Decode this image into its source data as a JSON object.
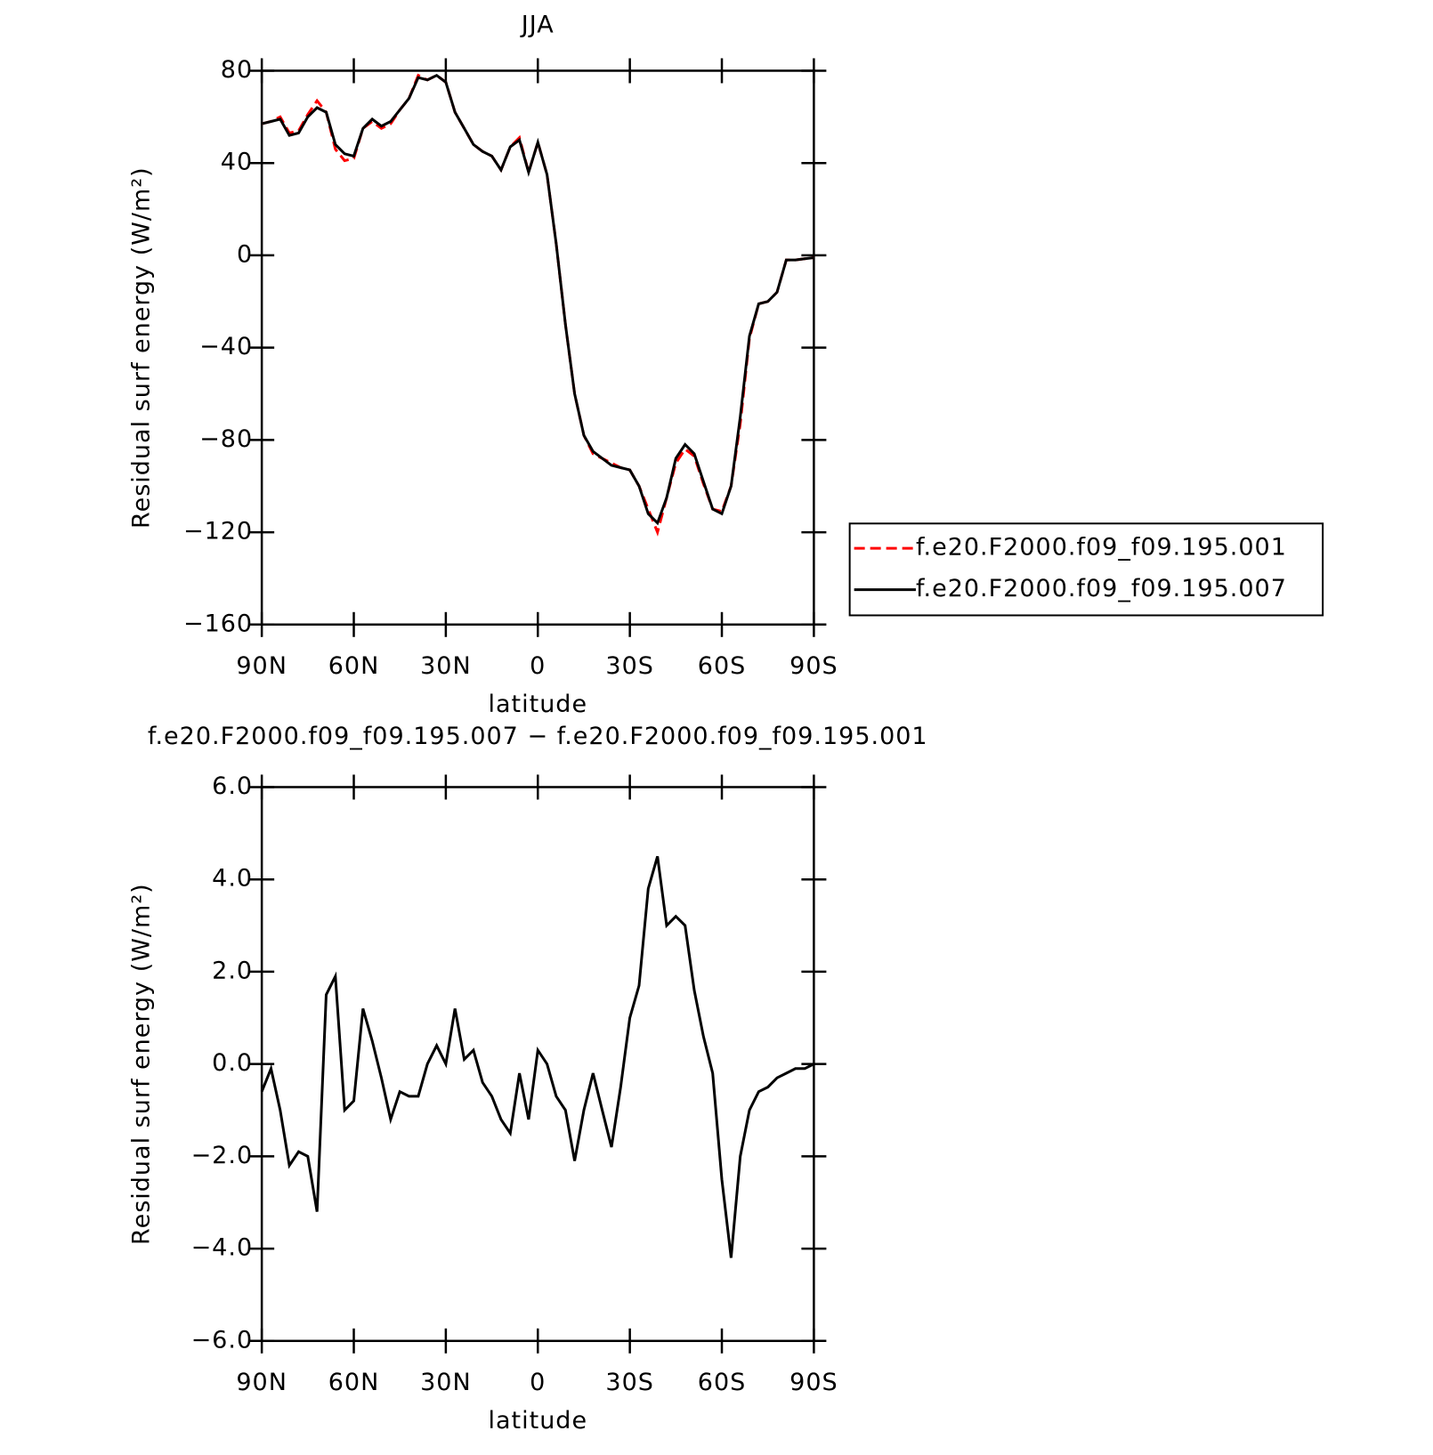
{
  "chart_data": [
    {
      "type": "line",
      "title": "JJA",
      "xlabel": "latitude",
      "ylabel": "Residual surf energy (W/m²)",
      "x": [
        90,
        87,
        84,
        81,
        78,
        75,
        72,
        69,
        66,
        63,
        60,
        57,
        54,
        51,
        48,
        45,
        42,
        39,
        36,
        33,
        30,
        27,
        24,
        21,
        18,
        15,
        12,
        9,
        6,
        3,
        0,
        -3,
        -6,
        -9,
        -12,
        -15,
        -18,
        -21,
        -24,
        -27,
        -30,
        -33,
        -36,
        -39,
        -42,
        -45,
        -48,
        -51,
        -54,
        -57,
        -60,
        -63,
        -66,
        -69,
        -72,
        -75,
        -78,
        -81,
        -84,
        -87,
        -90
      ],
      "xlim": [
        90,
        -90
      ],
      "xticks": [
        {
          "value": 90,
          "label": "90N"
        },
        {
          "value": 60,
          "label": "60N"
        },
        {
          "value": 30,
          "label": "30N"
        },
        0,
        {
          "value": -30,
          "label": "30S"
        },
        {
          "value": -60,
          "label": "60S"
        },
        {
          "value": -90,
          "label": "90S"
        }
      ],
      "ylim": [
        -160,
        80
      ],
      "yticks": [
        {
          "value": -160,
          "label": "−160"
        },
        {
          "value": -120,
          "label": "−120"
        },
        {
          "value": -80,
          "label": "−80"
        },
        {
          "value": -40,
          "label": "−40"
        },
        0,
        40,
        80
      ],
      "legend": "right",
      "series": [
        {
          "name": "f.e20.F2000.f09_f09.195.001",
          "color": "#ff0000",
          "dash": "dashed",
          "values": [
            57,
            58,
            60,
            53,
            54,
            61,
            67,
            62,
            46,
            41,
            42,
            55,
            58,
            55,
            57,
            63,
            68,
            78,
            76,
            78,
            75,
            62,
            55,
            48,
            45,
            43,
            37,
            47,
            51,
            36,
            49,
            35,
            5,
            -30,
            -60,
            -78,
            -86,
            -88,
            -90,
            -92,
            -93,
            -100,
            -110,
            -120,
            -105,
            -90,
            -84,
            -87,
            -99,
            -110,
            -111,
            -100,
            -73,
            -36,
            -21,
            -20,
            -16,
            -2,
            -2,
            -1.5,
            -1
          ]
        },
        {
          "name": "f.e20.F2000.f09_f09.195.007",
          "color": "#000000",
          "dash": "solid",
          "values": [
            57,
            58,
            59,
            52,
            53,
            60,
            64,
            62,
            48,
            44,
            43,
            55,
            59,
            56,
            58,
            63,
            68,
            77,
            76,
            78,
            75,
            62,
            55,
            48,
            45,
            43,
            37,
            47,
            50,
            36,
            49,
            35,
            5,
            -30,
            -60,
            -78,
            -85,
            -88,
            -91,
            -92,
            -93,
            -100,
            -112,
            -116,
            -105,
            -88,
            -82,
            -86,
            -98,
            -110,
            -112,
            -100,
            -70,
            -35,
            -21,
            -20,
            -16,
            -2,
            -2,
            -1.5,
            -1
          ]
        }
      ]
    },
    {
      "type": "line",
      "title": "f.e20.F2000.f09_f09.195.007 − f.e20.F2000.f09_f09.195.001",
      "xlabel": "latitude",
      "ylabel": "Residual surf energy (W/m²)",
      "x": [
        90,
        87,
        84,
        81,
        78,
        75,
        72,
        69,
        66,
        63,
        60,
        57,
        54,
        51,
        48,
        45,
        42,
        39,
        36,
        33,
        30,
        27,
        24,
        21,
        18,
        15,
        12,
        9,
        6,
        3,
        0,
        -3,
        -6,
        -9,
        -12,
        -15,
        -18,
        -21,
        -24,
        -27,
        -30,
        -33,
        -36,
        -39,
        -42,
        -45,
        -48,
        -51,
        -54,
        -57,
        -60,
        -63,
        -66,
        -69,
        -72,
        -75,
        -78,
        -81,
        -84,
        -87,
        -90
      ],
      "xlim": [
        90,
        -90
      ],
      "xticks": [
        {
          "value": 90,
          "label": "90N"
        },
        {
          "value": 60,
          "label": "60N"
        },
        {
          "value": 30,
          "label": "30N"
        },
        0,
        {
          "value": -30,
          "label": "30S"
        },
        {
          "value": -60,
          "label": "60S"
        },
        {
          "value": -90,
          "label": "90S"
        }
      ],
      "ylim": [
        -6,
        6
      ],
      "yticks": [
        {
          "value": -6,
          "label": "−6.0"
        },
        {
          "value": -4,
          "label": "−4.0"
        },
        {
          "value": -2,
          "label": "−2.0"
        },
        {
          "value": 0,
          "label": "0.0"
        },
        {
          "value": 2,
          "label": "2.0"
        },
        {
          "value": 4,
          "label": "4.0"
        },
        {
          "value": 6,
          "label": "6.0"
        }
      ],
      "series": [
        {
          "color": "#000000",
          "dash": "solid",
          "values": [
            -0.6,
            -0.1,
            -1.0,
            -2.2,
            -1.9,
            -2.0,
            -3.2,
            1.5,
            1.9,
            -1.0,
            -0.8,
            1.2,
            0.5,
            -0.3,
            -1.2,
            -0.6,
            -0.7,
            -0.7,
            0.0,
            0.4,
            0.0,
            1.2,
            0.1,
            0.3,
            -0.4,
            -0.7,
            -1.2,
            -1.5,
            -0.2,
            -1.2,
            0.3,
            0.0,
            -0.7,
            -1.0,
            -2.1,
            -1.0,
            -0.2,
            -1.0,
            -1.8,
            -0.5,
            1.0,
            1.7,
            3.8,
            4.5,
            3.0,
            3.2,
            3.0,
            1.6,
            0.6,
            -0.2,
            -2.5,
            -4.2,
            -2.0,
            -1.0,
            -0.6,
            -0.5,
            -0.3,
            -0.2,
            -0.1,
            -0.1,
            0.0
          ]
        }
      ]
    }
  ]
}
